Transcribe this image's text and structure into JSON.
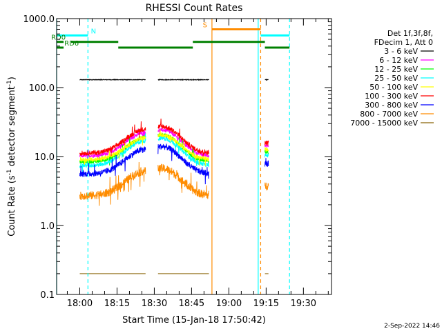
{
  "chart_data": {
    "type": "line",
    "title": "RHESSI Count Rates",
    "xlabel": "Start Time (15-Jan-18 17:50:42)",
    "ylabel_main": "Count Rate (s",
    "ylabel_sup1": "-1",
    "ylabel_mid": " detector segment",
    "ylabel_sup2": "-1",
    "ylabel_end": ")",
    "timestamp": "2-Sep-2022 14:46",
    "y_scale": "log",
    "ylim": [
      0.1,
      1000
    ],
    "xlim_min": [
      -9.3,
      101.3
    ],
    "xticks": [
      {
        "v": 0,
        "label": "18:00"
      },
      {
        "v": 15,
        "label": "18:15"
      },
      {
        "v": 30,
        "label": "18:30"
      },
      {
        "v": 45,
        "label": "18:45"
      },
      {
        "v": 60,
        "label": "19:00"
      },
      {
        "v": 75,
        "label": "19:15"
      },
      {
        "v": 90,
        "label": "19:30"
      }
    ],
    "yticks": [
      {
        "v": 0.1,
        "label": "0.1"
      },
      {
        "v": 1,
        "label": "1.0"
      },
      {
        "v": 10,
        "label": "10.0"
      },
      {
        "v": 100,
        "label": "100.0"
      },
      {
        "v": 1000,
        "label": "1000.0"
      }
    ],
    "legend": {
      "placement": "right",
      "header": [
        "Det 1f,3f,8f,",
        "FDecim 1, Att 0"
      ]
    },
    "series": [
      {
        "name": "3 - 6 keV",
        "color": "#000000",
        "level": 130,
        "amp": 0,
        "noise": 0.02
      },
      {
        "name": "6 - 12 keV",
        "color": "#ff00ff",
        "level": 10.2,
        "amp": 1.2,
        "noise": 0.06
      },
      {
        "name": "12 - 25 keV",
        "color": "#00ff00",
        "level": 8.4,
        "amp": 1.25,
        "noise": 0.07
      },
      {
        "name": "25 - 50 keV",
        "color": "#00ffff",
        "level": 7.4,
        "amp": 1.3,
        "noise": 0.07
      },
      {
        "name": "50 - 100 keV",
        "color": "#ffff00",
        "level": 9.0,
        "amp": 1.1,
        "noise": 0.07
      },
      {
        "name": "100 - 300 keV",
        "color": "#ff0000",
        "level": 11.2,
        "amp": 1.25,
        "noise": 0.08
      },
      {
        "name": "300 - 800 keV",
        "color": "#0000ff",
        "level": 5.6,
        "amp": 1.3,
        "noise": 0.1
      },
      {
        "name": "800 - 7000 keV",
        "color": "#ff8c00",
        "level": 2.7,
        "amp": 1.3,
        "noise": 0.14
      },
      {
        "name": "7000 - 15000 keV",
        "color": "#8b6508",
        "level": 0.2,
        "amp": 0,
        "noise": 0
      }
    ],
    "data_intervals": [
      [
        0,
        26.5
      ],
      [
        31.5,
        52
      ],
      [
        74.5,
        76
      ]
    ],
    "vlines": [
      {
        "x": -9.3,
        "color": "#00ffff",
        "dash": false
      },
      {
        "x": 3.3,
        "color": "#00ffff",
        "dash": true
      },
      {
        "x": 53.2,
        "color": "#ff8c00",
        "dash": false
      },
      {
        "x": 71.8,
        "color": "#00ffff",
        "dash": false
      },
      {
        "x": 72.8,
        "color": "#ff8c00",
        "dash": true
      },
      {
        "x": 84.4,
        "color": "#00ffff",
        "dash": true
      }
    ],
    "flags": [
      {
        "label": "N",
        "color": "#00ffff",
        "y": 570,
        "segments": [
          [
            -9.3,
            3.3
          ]
        ],
        "label_x": 4.5
      },
      {
        "label": "",
        "color": "#00ffff",
        "y": 570,
        "segments": [
          [
            72.8,
            84.4
          ]
        ]
      },
      {
        "label": "S",
        "color": "#ff8c00",
        "y": 700,
        "segments": [
          [
            53.2,
            72.8
          ]
        ],
        "label_x": 49.5
      },
      {
        "label": "RD0",
        "color": "#008000",
        "y": 460,
        "segments": [
          [
            -9.3,
            -6.5
          ],
          [
            -3.5,
            15.5
          ],
          [
            45.5,
            74.5
          ]
        ],
        "label_x": -11.5
      },
      {
        "label": "RD6",
        "color": "#008000",
        "y": 380,
        "segments": [
          [
            -9.3,
            -6.5
          ],
          [
            15.5,
            45.5
          ],
          [
            74.5,
            84.4
          ]
        ],
        "label_x": -6.2
      }
    ]
  }
}
